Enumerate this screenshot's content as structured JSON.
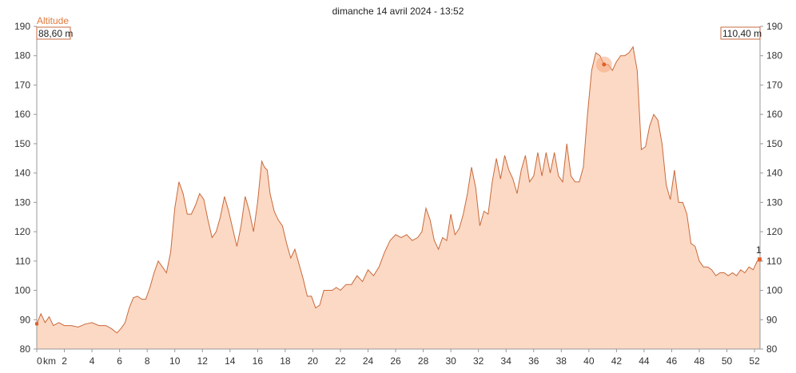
{
  "chart_data": {
    "type": "area",
    "title": "dimanche 14 avril 2024 - 13:52",
    "ylabel": "Altitude",
    "x_unit": "km",
    "xlim": [
      0,
      52.4
    ],
    "ylim": [
      80,
      190
    ],
    "y_ticks": [
      80,
      90,
      100,
      110,
      120,
      130,
      140,
      150,
      160,
      170,
      180,
      190
    ],
    "x_ticks": [
      {
        "v": 0,
        "label": "0"
      },
      {
        "v": 2,
        "label": "2"
      },
      {
        "v": 4,
        "label": "4"
      },
      {
        "v": 6,
        "label": "6"
      },
      {
        "v": 8,
        "label": "8"
      },
      {
        "v": 10,
        "label": "10"
      },
      {
        "v": 12,
        "label": "12"
      },
      {
        "v": 14,
        "label": "14"
      },
      {
        "v": 16,
        "label": "16"
      },
      {
        "v": 18,
        "label": "18"
      },
      {
        "v": 20,
        "label": "20"
      },
      {
        "v": 22,
        "label": "22"
      },
      {
        "v": 24,
        "label": "24"
      },
      {
        "v": 26,
        "label": "26"
      },
      {
        "v": 28,
        "label": "28"
      },
      {
        "v": 30,
        "label": "30"
      },
      {
        "v": 32,
        "label": "32"
      },
      {
        "v": 34,
        "label": "34"
      },
      {
        "v": 36,
        "label": "36"
      },
      {
        "v": 38,
        "label": "38"
      },
      {
        "v": 40,
        "label": "40"
      },
      {
        "v": 42,
        "label": "42"
      },
      {
        "v": 44,
        "label": "44"
      },
      {
        "v": 46,
        "label": "46"
      },
      {
        "v": 48,
        "label": "48"
      },
      {
        "v": 50,
        "label": "50"
      },
      {
        "v": 52,
        "label": "52"
      }
    ],
    "start_value_label": "88,60 m",
    "end_value_label": "110,40 m",
    "end_marker_label": "1",
    "fill_color": "#fcd9c4",
    "line_color": "#c96a3c",
    "marker_color": "#e0602a",
    "highlight": {
      "x": 41.1,
      "y": 177
    },
    "x": [
      0,
      0.3,
      0.6,
      0.9,
      1.2,
      1.6,
      2,
      2.5,
      3,
      3.5,
      4,
      4.5,
      5,
      5.4,
      5.8,
      6.1,
      6.4,
      6.7,
      7,
      7.3,
      7.6,
      7.9,
      8.2,
      8.5,
      8.8,
      9.1,
      9.4,
      9.7,
      10,
      10.3,
      10.6,
      10.9,
      11.2,
      11.5,
      11.8,
      12.1,
      12.4,
      12.7,
      13,
      13.3,
      13.6,
      13.9,
      14.2,
      14.5,
      14.8,
      15.1,
      15.4,
      15.7,
      16,
      16.3,
      16.5,
      16.7,
      16.9,
      17.2,
      17.5,
      17.8,
      18.1,
      18.4,
      18.7,
      19,
      19.3,
      19.6,
      19.9,
      20.2,
      20.5,
      20.8,
      21.1,
      21.4,
      21.7,
      22,
      22.4,
      22.8,
      23.2,
      23.6,
      24,
      24.4,
      24.8,
      25.2,
      25.6,
      26,
      26.4,
      26.8,
      27.2,
      27.6,
      27.9,
      28.2,
      28.5,
      28.8,
      29.1,
      29.4,
      29.7,
      30,
      30.3,
      30.6,
      30.9,
      31.2,
      31.5,
      31.8,
      32.1,
      32.4,
      32.7,
      33,
      33.3,
      33.6,
      33.9,
      34.2,
      34.5,
      34.8,
      35.1,
      35.4,
      35.7,
      36,
      36.3,
      36.6,
      36.9,
      37.2,
      37.5,
      37.8,
      38.1,
      38.4,
      38.7,
      39,
      39.3,
      39.6,
      39.9,
      40.2,
      40.5,
      40.8,
      41.1,
      41.4,
      41.7,
      42,
      42.3,
      42.6,
      42.9,
      43.2,
      43.5,
      43.8,
      44.1,
      44.4,
      44.7,
      45,
      45.3,
      45.6,
      45.9,
      46.2,
      46.5,
      46.8,
      47.1,
      47.4,
      47.7,
      48,
      48.3,
      48.6,
      48.9,
      49.2,
      49.5,
      49.8,
      50.1,
      50.4,
      50.7,
      51,
      51.3,
      51.6,
      51.9,
      52.2,
      52.4
    ],
    "y": [
      88.6,
      92,
      89,
      91,
      88,
      89,
      88,
      88,
      87.5,
      88.5,
      89,
      88,
      88,
      87,
      85.5,
      87,
      89,
      94,
      97.5,
      98,
      97,
      97,
      101,
      106,
      110,
      108,
      106,
      113,
      128,
      137,
      133,
      126,
      126,
      129,
      133,
      131,
      124,
      118,
      120,
      125,
      132,
      127,
      121,
      115,
      122,
      132,
      127,
      120,
      130,
      144,
      142,
      141,
      133,
      127,
      124,
      122,
      116,
      111,
      114,
      109,
      104,
      98,
      98,
      94,
      95,
      100,
      100,
      100,
      101,
      100,
      102,
      102,
      105,
      103,
      107,
      105,
      108,
      113,
      117,
      119,
      118,
      119,
      117,
      118,
      120,
      128,
      124,
      117,
      114,
      118,
      117,
      126,
      119,
      121,
      126,
      133,
      142,
      135,
      122,
      127,
      126,
      137,
      145,
      138,
      146,
      141,
      138,
      133,
      141,
      146,
      137,
      139,
      147,
      139,
      147,
      140,
      147,
      139,
      137,
      150,
      139,
      137,
      137,
      142,
      160,
      175,
      181,
      180,
      177,
      177,
      175,
      178,
      180,
      180,
      181,
      183,
      175,
      148,
      149,
      156,
      160,
      158,
      150,
      136,
      131,
      141,
      130,
      130,
      126,
      116,
      115,
      110,
      108,
      108,
      107,
      105,
      106,
      106,
      105,
      106,
      105,
      107,
      106,
      108,
      107,
      110,
      110.4
    ]
  }
}
